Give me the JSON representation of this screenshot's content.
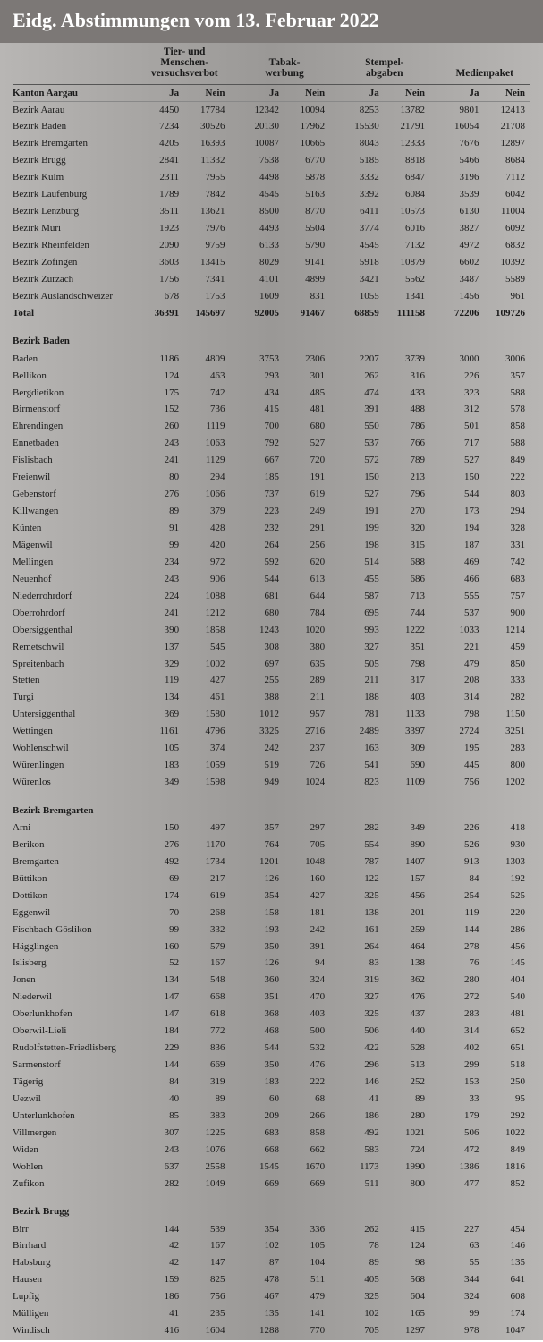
{
  "title": "Eidg. Abstimmungen vom 13. Februar 2022",
  "groups": [
    {
      "line1": "Tier- und Menschen-",
      "line2": "versuchsverbot"
    },
    {
      "line1": "Tabak-",
      "line2": "werbung"
    },
    {
      "line1": "Stempel-",
      "line2": "abgaben"
    },
    {
      "line1": "",
      "line2": "Medienpaket"
    }
  ],
  "sub": {
    "ja": "Ja",
    "nein": "Nein"
  },
  "sections": [
    {
      "header": "Kanton Aargau",
      "header_in_sub": true,
      "rows": [
        {
          "l": "Bezirk Aarau",
          "v": [
            4450,
            17784,
            12342,
            10094,
            8253,
            13782,
            9801,
            12413
          ]
        },
        {
          "l": "Bezirk Baden",
          "v": [
            7234,
            30526,
            20130,
            17962,
            15530,
            21791,
            16054,
            21708
          ]
        },
        {
          "l": "Bezirk Bremgarten",
          "v": [
            4205,
            16393,
            10087,
            10665,
            8043,
            12333,
            7676,
            12897
          ]
        },
        {
          "l": "Bezirk Brugg",
          "v": [
            2841,
            11332,
            7538,
            6770,
            5185,
            8818,
            5466,
            8684
          ]
        },
        {
          "l": "Bezirk Kulm",
          "v": [
            2311,
            7955,
            4498,
            5878,
            3332,
            6847,
            3196,
            7112
          ]
        },
        {
          "l": "Bezirk Laufenburg",
          "v": [
            1789,
            7842,
            4545,
            5163,
            3392,
            6084,
            3539,
            6042
          ]
        },
        {
          "l": "Bezirk Lenzburg",
          "v": [
            3511,
            13621,
            8500,
            8770,
            6411,
            10573,
            6130,
            11004
          ]
        },
        {
          "l": "Bezirk Muri",
          "v": [
            1923,
            7976,
            4493,
            5504,
            3774,
            6016,
            3827,
            6092
          ]
        },
        {
          "l": "Bezirk Rheinfelden",
          "v": [
            2090,
            9759,
            6133,
            5790,
            4545,
            7132,
            4972,
            6832
          ]
        },
        {
          "l": "Bezirk Zofingen",
          "v": [
            3603,
            13415,
            8029,
            9141,
            5918,
            10879,
            6602,
            10392
          ]
        },
        {
          "l": "Bezirk Zurzach",
          "v": [
            1756,
            7341,
            4101,
            4899,
            3421,
            5562,
            3487,
            5589
          ]
        },
        {
          "l": "Bezirk Auslandschweizer",
          "v": [
            678,
            1753,
            1609,
            831,
            1055,
            1341,
            1456,
            961
          ]
        },
        {
          "l": "Total",
          "v": [
            36391,
            145697,
            92005,
            91467,
            68859,
            111158,
            72206,
            109726
          ],
          "total": true
        }
      ]
    },
    {
      "header": "Bezirk Baden",
      "rows": [
        {
          "l": "Baden",
          "v": [
            1186,
            4809,
            3753,
            2306,
            2207,
            3739,
            3000,
            3006
          ]
        },
        {
          "l": "Bellikon",
          "v": [
            124,
            463,
            293,
            301,
            262,
            316,
            226,
            357
          ]
        },
        {
          "l": "Bergdietikon",
          "v": [
            175,
            742,
            434,
            485,
            474,
            433,
            323,
            588
          ]
        },
        {
          "l": "Birmenstorf",
          "v": [
            152,
            736,
            415,
            481,
            391,
            488,
            312,
            578
          ]
        },
        {
          "l": "Ehrendingen",
          "v": [
            260,
            1119,
            700,
            680,
            550,
            786,
            501,
            858
          ]
        },
        {
          "l": "Ennetbaden",
          "v": [
            243,
            1063,
            792,
            527,
            537,
            766,
            717,
            588
          ]
        },
        {
          "l": "Fislisbach",
          "v": [
            241,
            1129,
            667,
            720,
            572,
            789,
            527,
            849
          ]
        },
        {
          "l": "Freienwil",
          "v": [
            80,
            294,
            185,
            191,
            150,
            213,
            150,
            222
          ]
        },
        {
          "l": "Gebenstorf",
          "v": [
            276,
            1066,
            737,
            619,
            527,
            796,
            544,
            803
          ]
        },
        {
          "l": "Killwangen",
          "v": [
            89,
            379,
            223,
            249,
            191,
            270,
            173,
            294
          ]
        },
        {
          "l": "Künten",
          "v": [
            91,
            428,
            232,
            291,
            199,
            320,
            194,
            328
          ]
        },
        {
          "l": "Mägenwil",
          "v": [
            99,
            420,
            264,
            256,
            198,
            315,
            187,
            331
          ]
        },
        {
          "l": "Mellingen",
          "v": [
            234,
            972,
            592,
            620,
            514,
            688,
            469,
            742
          ]
        },
        {
          "l": "Neuenhof",
          "v": [
            243,
            906,
            544,
            613,
            455,
            686,
            466,
            683
          ]
        },
        {
          "l": "Niederrohrdorf",
          "v": [
            224,
            1088,
            681,
            644,
            587,
            713,
            555,
            757
          ]
        },
        {
          "l": "Oberrohrdorf",
          "v": [
            241,
            1212,
            680,
            784,
            695,
            744,
            537,
            900
          ]
        },
        {
          "l": "Obersiggenthal",
          "v": [
            390,
            1858,
            1243,
            1020,
            993,
            1222,
            1033,
            1214
          ]
        },
        {
          "l": "Remetschwil",
          "v": [
            137,
            545,
            308,
            380,
            327,
            351,
            221,
            459
          ]
        },
        {
          "l": "Spreitenbach",
          "v": [
            329,
            1002,
            697,
            635,
            505,
            798,
            479,
            850
          ]
        },
        {
          "l": "Stetten",
          "v": [
            119,
            427,
            255,
            289,
            211,
            317,
            208,
            333
          ]
        },
        {
          "l": "Turgi",
          "v": [
            134,
            461,
            388,
            211,
            188,
            403,
            314,
            282
          ]
        },
        {
          "l": "Untersiggenthal",
          "v": [
            369,
            1580,
            1012,
            957,
            781,
            1133,
            798,
            1150
          ]
        },
        {
          "l": "Wettingen",
          "v": [
            1161,
            4796,
            3325,
            2716,
            2489,
            3397,
            2724,
            3251
          ]
        },
        {
          "l": "Wohlenschwil",
          "v": [
            105,
            374,
            242,
            237,
            163,
            309,
            195,
            283
          ]
        },
        {
          "l": "Würenlingen",
          "v": [
            183,
            1059,
            519,
            726,
            541,
            690,
            445,
            800
          ]
        },
        {
          "l": "Würenlos",
          "v": [
            349,
            1598,
            949,
            1024,
            823,
            1109,
            756,
            1202
          ]
        }
      ]
    },
    {
      "header": "Bezirk Bremgarten",
      "rows": [
        {
          "l": "Arni",
          "v": [
            150,
            497,
            357,
            297,
            282,
            349,
            226,
            418
          ]
        },
        {
          "l": "Berikon",
          "v": [
            276,
            1170,
            764,
            705,
            554,
            890,
            526,
            930
          ]
        },
        {
          "l": "Bremgarten",
          "v": [
            492,
            1734,
            1201,
            1048,
            787,
            1407,
            913,
            1303
          ]
        },
        {
          "l": "Büttikon",
          "v": [
            69,
            217,
            126,
            160,
            122,
            157,
            84,
            192
          ]
        },
        {
          "l": "Dottikon",
          "v": [
            174,
            619,
            354,
            427,
            325,
            456,
            254,
            525
          ]
        },
        {
          "l": "Eggenwil",
          "v": [
            70,
            268,
            158,
            181,
            138,
            201,
            119,
            220
          ]
        },
        {
          "l": "Fischbach-Göslikon",
          "v": [
            99,
            332,
            193,
            242,
            161,
            259,
            144,
            286
          ]
        },
        {
          "l": "Hägglingen",
          "v": [
            160,
            579,
            350,
            391,
            264,
            464,
            278,
            456
          ]
        },
        {
          "l": "Islisberg",
          "v": [
            52,
            167,
            126,
            94,
            83,
            138,
            76,
            145
          ]
        },
        {
          "l": "Jonen",
          "v": [
            134,
            548,
            360,
            324,
            319,
            362,
            280,
            404
          ]
        },
        {
          "l": "Niederwil",
          "v": [
            147,
            668,
            351,
            470,
            327,
            476,
            272,
            540
          ]
        },
        {
          "l": "Oberlunkhofen",
          "v": [
            147,
            618,
            368,
            403,
            325,
            437,
            283,
            481
          ]
        },
        {
          "l": "Oberwil-Lieli",
          "v": [
            184,
            772,
            468,
            500,
            506,
            440,
            314,
            652
          ]
        },
        {
          "l": "Rudolfstetten-Friedlisberg",
          "v": [
            229,
            836,
            544,
            532,
            422,
            628,
            402,
            651
          ]
        },
        {
          "l": "Sarmenstorf",
          "v": [
            144,
            669,
            350,
            476,
            296,
            513,
            299,
            518
          ]
        },
        {
          "l": "Tägerig",
          "v": [
            84,
            319,
            183,
            222,
            146,
            252,
            153,
            250
          ]
        },
        {
          "l": "Uezwil",
          "v": [
            40,
            89,
            60,
            68,
            41,
            89,
            33,
            95
          ]
        },
        {
          "l": "Unterlunkhofen",
          "v": [
            85,
            383,
            209,
            266,
            186,
            280,
            179,
            292
          ]
        },
        {
          "l": "Villmergen",
          "v": [
            307,
            1225,
            683,
            858,
            492,
            1021,
            506,
            1022
          ]
        },
        {
          "l": "Widen",
          "v": [
            243,
            1076,
            668,
            662,
            583,
            724,
            472,
            849
          ]
        },
        {
          "l": "Wohlen",
          "v": [
            637,
            2558,
            1545,
            1670,
            1173,
            1990,
            1386,
            1816
          ]
        },
        {
          "l": "Zufikon",
          "v": [
            282,
            1049,
            669,
            669,
            511,
            800,
            477,
            852
          ]
        }
      ]
    },
    {
      "header": "Bezirk Brugg",
      "rows": [
        {
          "l": "Birr",
          "v": [
            144,
            539,
            354,
            336,
            262,
            415,
            227,
            454
          ]
        },
        {
          "l": "Birrhard",
          "v": [
            42,
            167,
            102,
            105,
            78,
            124,
            63,
            146
          ]
        },
        {
          "l": "Habsburg",
          "v": [
            42,
            147,
            87,
            104,
            89,
            98,
            55,
            135
          ]
        },
        {
          "l": "Hausen",
          "v": [
            159,
            825,
            478,
            511,
            405,
            568,
            344,
            641
          ]
        },
        {
          "l": "Lupfig",
          "v": [
            186,
            756,
            467,
            479,
            325,
            604,
            324,
            608
          ]
        },
        {
          "l": "Mülligen",
          "v": [
            41,
            235,
            135,
            141,
            102,
            165,
            99,
            174
          ]
        },
        {
          "l": "Windisch",
          "v": [
            416,
            1604,
            1288,
            770,
            705,
            1297,
            978,
            1047
          ]
        }
      ]
    }
  ]
}
